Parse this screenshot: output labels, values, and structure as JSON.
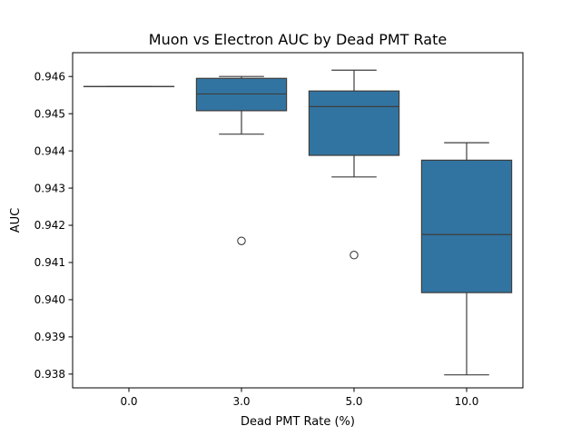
{
  "chart_data": {
    "type": "box",
    "title": "Muon vs Electron AUC by Dead PMT Rate",
    "xlabel": "Dead PMT Rate (%)",
    "ylabel": "AUC",
    "categories": [
      "0.0",
      "3.0",
      "5.0",
      "10.0"
    ],
    "ylim": [
      0.93763,
      0.94664
    ],
    "yticks": [
      0.938,
      0.939,
      0.94,
      0.941,
      0.942,
      0.943,
      0.944,
      0.945,
      0.946
    ],
    "ytick_labels": [
      "0.938",
      "0.939",
      "0.940",
      "0.941",
      "0.942",
      "0.943",
      "0.944",
      "0.945",
      "0.946"
    ],
    "box_color": "#3274a1",
    "line_color": "#3d3d3d",
    "boxes": [
      {
        "category": "0.0",
        "whisker_low": 0.94573,
        "q1": 0.94573,
        "median": 0.94573,
        "q3": 0.94573,
        "whisker_high": 0.94573,
        "outliers": []
      },
      {
        "category": "3.0",
        "whisker_low": 0.94445,
        "q1": 0.94508,
        "median": 0.94553,
        "q3": 0.94595,
        "whisker_high": 0.946,
        "outliers": [
          0.94158
        ]
      },
      {
        "category": "5.0",
        "whisker_low": 0.9433,
        "q1": 0.94388,
        "median": 0.94519,
        "q3": 0.94561,
        "whisker_high": 0.94617,
        "outliers": [
          0.9412
        ]
      },
      {
        "category": "10.0",
        "whisker_low": 0.93798,
        "q1": 0.94019,
        "median": 0.94175,
        "q3": 0.94375,
        "whisker_high": 0.94422,
        "outliers": []
      }
    ]
  }
}
